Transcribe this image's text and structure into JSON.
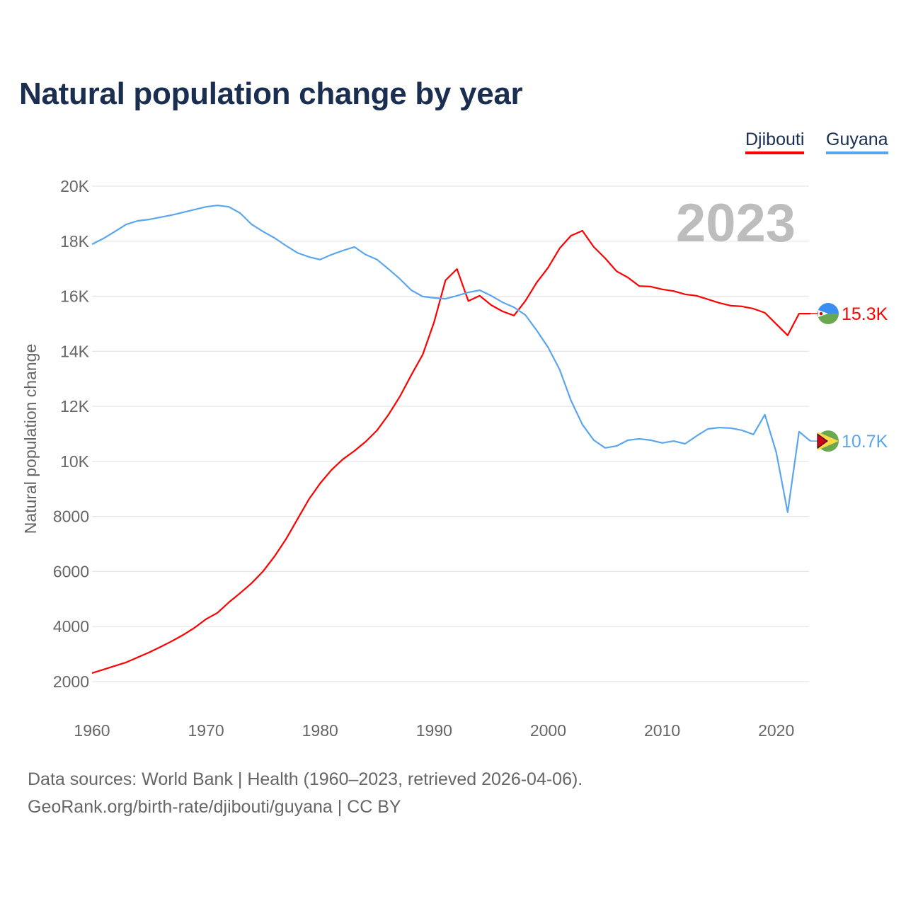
{
  "chart_data": {
    "type": "line",
    "title": "Natural population change by year",
    "xlabel": "",
    "ylabel": "Natural population change",
    "xlim": [
      1960,
      2023
    ],
    "ylim": [
      2000,
      20000
    ],
    "grid": true,
    "legend_position": "top-right",
    "year_label": "2023",
    "x_ticks": [
      1960,
      1970,
      1980,
      1990,
      2000,
      2010,
      2020
    ],
    "x_tick_labels": [
      "1960",
      "1970",
      "1980",
      "1990",
      "2000",
      "2010",
      "2020"
    ],
    "y_ticks": [
      2000,
      4000,
      6000,
      8000,
      10000,
      12000,
      14000,
      16000,
      18000,
      20000
    ],
    "y_tick_labels": [
      "2000",
      "4000",
      "6000",
      "8000",
      "10K",
      "12K",
      "14K",
      "16K",
      "18K",
      "20K"
    ],
    "x": [
      1960,
      1961,
      1962,
      1963,
      1964,
      1965,
      1966,
      1967,
      1968,
      1969,
      1970,
      1971,
      1972,
      1973,
      1974,
      1975,
      1976,
      1977,
      1978,
      1979,
      1980,
      1981,
      1982,
      1983,
      1984,
      1985,
      1986,
      1987,
      1988,
      1989,
      1990,
      1991,
      1992,
      1993,
      1994,
      1995,
      1996,
      1997,
      1998,
      1999,
      2000,
      2001,
      2002,
      2003,
      2004,
      2005,
      2006,
      2007,
      2008,
      2009,
      2010,
      2011,
      2012,
      2013,
      2014,
      2015,
      2016,
      2017,
      2018,
      2019,
      2020,
      2021,
      2022,
      2023
    ],
    "series": [
      {
        "name": "Djibouti",
        "color": "#ff0000",
        "end_label": "15.3K",
        "values": [
          2310,
          2440,
          2570,
          2700,
          2880,
          3060,
          3260,
          3470,
          3700,
          3960,
          4270,
          4500,
          4880,
          5220,
          5580,
          6010,
          6550,
          7170,
          7890,
          8610,
          9200,
          9690,
          10080,
          10380,
          10720,
          11130,
          11700,
          12360,
          13140,
          13880,
          15060,
          16580,
          16990,
          15830,
          16020,
          15680,
          15450,
          15300,
          15830,
          16500,
          17040,
          17740,
          18200,
          18380,
          17790,
          17380,
          16910,
          16680,
          16370,
          16350,
          16250,
          16190,
          16070,
          16020,
          15890,
          15760,
          15660,
          15630,
          15550,
          15400,
          14990,
          14580,
          15370,
          15370
        ]
      },
      {
        "name": "Guyana",
        "color": "#5aa6ee",
        "end_label": "10.7K",
        "values": [
          17890,
          18100,
          18350,
          18610,
          18740,
          18790,
          18870,
          18950,
          19050,
          19150,
          19250,
          19300,
          19250,
          19020,
          18610,
          18350,
          18120,
          17840,
          17580,
          17430,
          17330,
          17510,
          17660,
          17790,
          17510,
          17330,
          16990,
          16630,
          16220,
          15990,
          15940,
          15910,
          16020,
          16140,
          16220,
          16020,
          15780,
          15600,
          15320,
          14760,
          14140,
          13340,
          12210,
          11340,
          10770,
          10490,
          10560,
          10770,
          10820,
          10770,
          10670,
          10740,
          10640,
          10920,
          11180,
          11230,
          11210,
          11130,
          10980,
          11700,
          10330,
          8150,
          11080,
          10740
        ]
      }
    ]
  },
  "footer": {
    "line1": "Data sources: World Bank | Health (1960–2023, retrieved 2026-04-06).",
    "line2": "GeoRank.org/birth-rate/djibouti/guyana | CC BY"
  }
}
